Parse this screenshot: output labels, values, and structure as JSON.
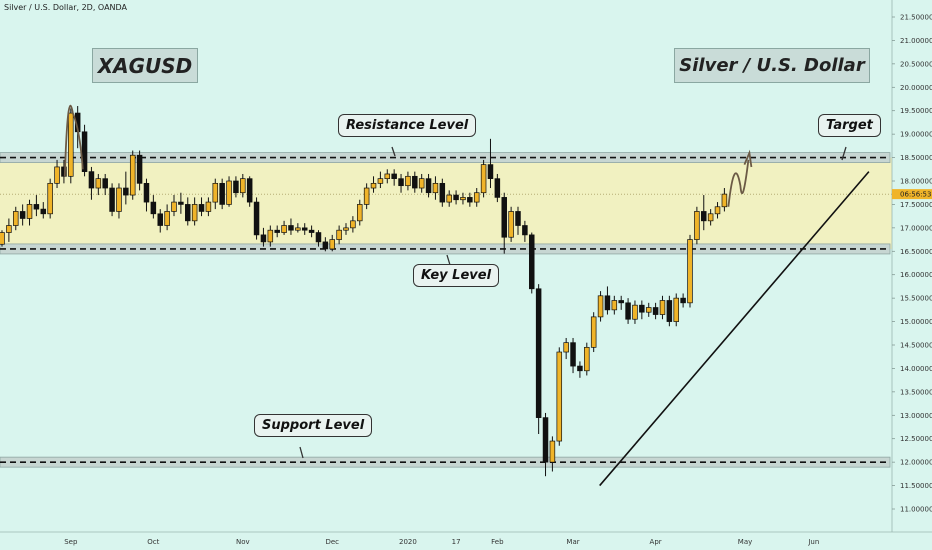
{
  "header": {
    "title": "Silver / U.S. Dollar, 2D, OANDA"
  },
  "labels": {
    "symbol": "XAGUSD",
    "name": "Silver / U.S. Dollar",
    "resistance": "Resistance Level",
    "key": "Key Level",
    "support": "Support Level",
    "target": "Target"
  },
  "colors": {
    "background": "#d9f5ee",
    "zone": "#f5f0b8",
    "bull_body": "#f0b429",
    "bear_body": "#111111",
    "level_band": "#c7d6d2"
  },
  "chart_data": {
    "type": "candlestick",
    "title": "Silver / U.S. Dollar, 2D, OANDA",
    "y_axis": {
      "range": [
        11.0,
        21.5
      ],
      "ticks": [
        "11.00000",
        "11.50000",
        "12.00000",
        "12.50000",
        "13.00000",
        "13.50000",
        "14.00000",
        "14.50000",
        "15.00000",
        "15.50000",
        "16.00000",
        "16.50000",
        "17.00000",
        "17.50000",
        "18.00000",
        "18.50000",
        "19.00000",
        "19.50000",
        "20.00000",
        "20.50000",
        "21.00000",
        "21.50000"
      ]
    },
    "x_axis": {
      "ticks": [
        "Sep",
        "Oct",
        "Nov",
        "Dec",
        "2020",
        "17",
        "Feb",
        "Mar",
        "Apr",
        "May",
        "Jun"
      ]
    },
    "current_price": {
      "value": 17.72,
      "label": "06:56:53"
    },
    "levels": [
      {
        "name": "Resistance Level",
        "value": 18.5
      },
      {
        "name": "Key Level",
        "value": 16.55
      },
      {
        "name": "Support Level",
        "value": 12.0
      }
    ],
    "zone": {
      "from": 16.55,
      "to": 18.5
    },
    "trendline": {
      "from": [
        "Mar",
        11.5
      ],
      "to": [
        "Jun",
        18.2
      ]
    },
    "projection": {
      "label": "Target",
      "to": 18.5
    },
    "candles": [
      [
        16.65,
        16.9,
        16.6,
        16.95
      ],
      [
        16.9,
        17.05,
        16.7,
        17.2
      ],
      [
        17.05,
        17.35,
        16.95,
        17.45
      ],
      [
        17.35,
        17.2,
        17.05,
        17.5
      ],
      [
        17.2,
        17.5,
        17.05,
        17.6
      ],
      [
        17.5,
        17.4,
        17.25,
        17.7
      ],
      [
        17.4,
        17.3,
        17.2,
        17.55
      ],
      [
        17.3,
        17.95,
        17.2,
        18.05
      ],
      [
        17.95,
        18.3,
        17.85,
        18.45
      ],
      [
        18.3,
        18.1,
        17.95,
        18.45
      ],
      [
        18.1,
        19.45,
        17.95,
        19.55
      ],
      [
        19.45,
        19.05,
        18.7,
        19.6
      ],
      [
        19.05,
        18.2,
        18.1,
        19.2
      ],
      [
        18.2,
        17.85,
        17.6,
        18.3
      ],
      [
        17.85,
        18.05,
        17.7,
        18.15
      ],
      [
        18.05,
        17.85,
        17.7,
        18.15
      ],
      [
        17.85,
        17.35,
        17.25,
        17.95
      ],
      [
        17.35,
        17.85,
        17.2,
        17.95
      ],
      [
        17.85,
        17.7,
        17.5,
        18.2
      ],
      [
        17.7,
        18.55,
        17.6,
        18.65
      ],
      [
        18.55,
        17.95,
        17.8,
        18.65
      ],
      [
        17.95,
        17.55,
        17.35,
        18.05
      ],
      [
        17.55,
        17.3,
        17.2,
        17.7
      ],
      [
        17.3,
        17.05,
        16.9,
        17.4
      ],
      [
        17.05,
        17.35,
        16.95,
        17.5
      ],
      [
        17.35,
        17.55,
        17.25,
        17.7
      ],
      [
        17.55,
        17.5,
        17.3,
        17.75
      ],
      [
        17.5,
        17.15,
        17.05,
        17.65
      ],
      [
        17.15,
        17.5,
        17.05,
        17.65
      ],
      [
        17.5,
        17.35,
        17.25,
        17.65
      ],
      [
        17.35,
        17.55,
        17.25,
        17.65
      ],
      [
        17.55,
        17.95,
        17.4,
        18.05
      ],
      [
        17.95,
        17.5,
        17.4,
        18.05
      ],
      [
        17.5,
        18.0,
        17.45,
        18.1
      ],
      [
        18.0,
        17.75,
        17.65,
        18.1
      ],
      [
        17.75,
        18.05,
        17.65,
        18.15
      ],
      [
        18.05,
        17.55,
        17.45,
        18.1
      ],
      [
        17.55,
        16.85,
        16.75,
        17.65
      ],
      [
        16.85,
        16.7,
        16.6,
        17.0
      ],
      [
        16.7,
        16.95,
        16.6,
        17.05
      ],
      [
        16.95,
        16.9,
        16.8,
        17.05
      ],
      [
        16.9,
        17.05,
        16.85,
        17.15
      ],
      [
        17.05,
        16.95,
        16.85,
        17.2
      ],
      [
        16.95,
        17.0,
        16.9,
        17.1
      ],
      [
        17.0,
        16.95,
        16.85,
        17.1
      ],
      [
        16.95,
        16.9,
        16.8,
        17.05
      ],
      [
        16.9,
        16.7,
        16.6,
        16.95
      ],
      [
        16.7,
        16.55,
        16.5,
        16.8
      ],
      [
        16.55,
        16.75,
        16.5,
        16.85
      ],
      [
        16.75,
        16.95,
        16.65,
        17.05
      ],
      [
        16.95,
        17.0,
        16.85,
        17.1
      ],
      [
        17.0,
        17.15,
        16.9,
        17.25
      ],
      [
        17.15,
        17.5,
        17.05,
        17.6
      ],
      [
        17.5,
        17.85,
        17.4,
        17.95
      ],
      [
        17.85,
        17.95,
        17.75,
        18.1
      ],
      [
        17.95,
        18.05,
        17.85,
        18.2
      ],
      [
        18.05,
        18.15,
        17.95,
        18.25
      ],
      [
        18.15,
        18.05,
        17.9,
        18.25
      ],
      [
        18.05,
        17.9,
        17.75,
        18.15
      ],
      [
        17.9,
        18.1,
        17.8,
        18.2
      ],
      [
        18.1,
        17.85,
        17.75,
        18.2
      ],
      [
        17.85,
        18.05,
        17.75,
        18.15
      ],
      [
        18.05,
        17.75,
        17.65,
        18.15
      ],
      [
        17.75,
        17.95,
        17.6,
        18.1
      ],
      [
        17.95,
        17.55,
        17.45,
        18.05
      ],
      [
        17.55,
        17.7,
        17.45,
        17.8
      ],
      [
        17.7,
        17.6,
        17.5,
        17.8
      ],
      [
        17.6,
        17.65,
        17.5,
        17.75
      ],
      [
        17.65,
        17.55,
        17.45,
        17.75
      ],
      [
        17.55,
        17.75,
        17.45,
        17.85
      ],
      [
        17.75,
        18.35,
        17.65,
        18.45
      ],
      [
        18.35,
        18.05,
        17.85,
        18.9
      ],
      [
        18.05,
        17.65,
        17.55,
        18.15
      ],
      [
        17.65,
        16.8,
        16.45,
        17.75
      ],
      [
        16.8,
        17.35,
        16.7,
        17.45
      ],
      [
        17.35,
        17.05,
        16.85,
        17.45
      ],
      [
        17.05,
        16.85,
        16.7,
        17.15
      ],
      [
        16.85,
        15.7,
        15.6,
        16.9
      ],
      [
        15.7,
        12.95,
        12.6,
        15.8
      ],
      [
        12.95,
        12.0,
        11.7,
        13.05
      ],
      [
        12.0,
        12.45,
        11.8,
        12.55
      ],
      [
        12.45,
        14.35,
        12.35,
        14.45
      ],
      [
        14.35,
        14.55,
        14.2,
        14.65
      ],
      [
        14.55,
        14.05,
        13.9,
        14.65
      ],
      [
        14.05,
        13.95,
        13.8,
        14.15
      ],
      [
        13.95,
        14.45,
        13.85,
        14.55
      ],
      [
        14.45,
        15.1,
        14.35,
        15.2
      ],
      [
        15.1,
        15.55,
        15.0,
        15.65
      ],
      [
        15.55,
        15.25,
        15.15,
        15.75
      ],
      [
        15.25,
        15.45,
        15.15,
        15.55
      ],
      [
        15.45,
        15.4,
        15.25,
        15.55
      ],
      [
        15.4,
        15.05,
        14.95,
        15.5
      ],
      [
        15.05,
        15.35,
        14.95,
        15.45
      ],
      [
        15.35,
        15.2,
        15.05,
        15.45
      ],
      [
        15.2,
        15.3,
        15.1,
        15.4
      ],
      [
        15.3,
        15.15,
        15.05,
        15.4
      ],
      [
        15.15,
        15.45,
        15.05,
        15.55
      ],
      [
        15.45,
        15.0,
        14.9,
        15.55
      ],
      [
        15.0,
        15.5,
        14.9,
        15.6
      ],
      [
        15.5,
        15.4,
        15.3,
        15.6
      ],
      [
        15.4,
        16.75,
        15.3,
        16.85
      ],
      [
        16.75,
        17.35,
        16.65,
        17.45
      ],
      [
        17.35,
        17.15,
        16.95,
        17.7
      ],
      [
        17.15,
        17.3,
        17.05,
        17.4
      ],
      [
        17.3,
        17.45,
        17.2,
        17.55
      ],
      [
        17.45,
        17.72,
        17.35,
        17.85
      ]
    ]
  }
}
